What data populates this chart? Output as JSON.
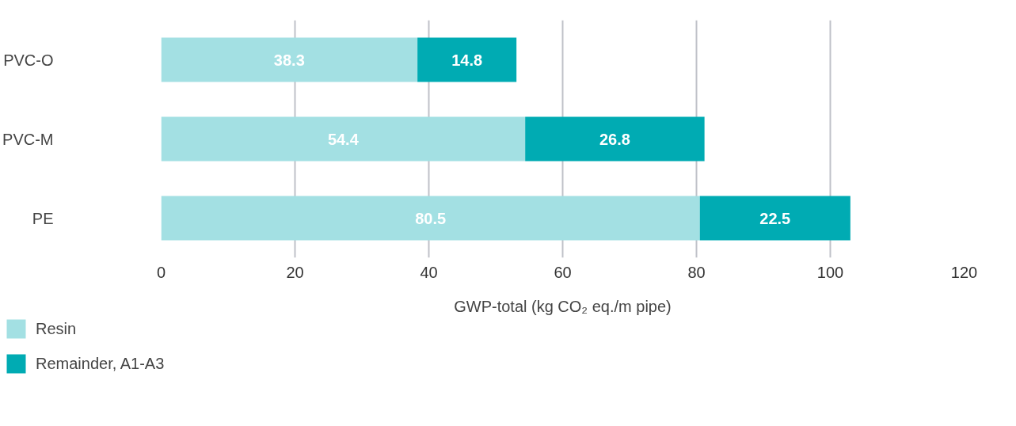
{
  "chart_data": {
    "type": "bar",
    "orientation": "horizontal",
    "stacked": true,
    "categories": [
      "PVC-O",
      "PVC-M",
      "PE"
    ],
    "series": [
      {
        "name": "Resin",
        "color": "#a3e0e3",
        "values": [
          38.3,
          54.4,
          80.5
        ]
      },
      {
        "name": "Remainder, A1-A3",
        "color": "#00abb3",
        "values": [
          14.8,
          26.8,
          22.5
        ]
      }
    ],
    "xlabel": "GWP-total (kg CO₂ eq./m pipe)",
    "xlim": [
      0,
      120
    ],
    "xticks": [
      0,
      20,
      40,
      60,
      80,
      100,
      120
    ],
    "grid": "x",
    "legend": "bottom left",
    "data_labels": true
  }
}
